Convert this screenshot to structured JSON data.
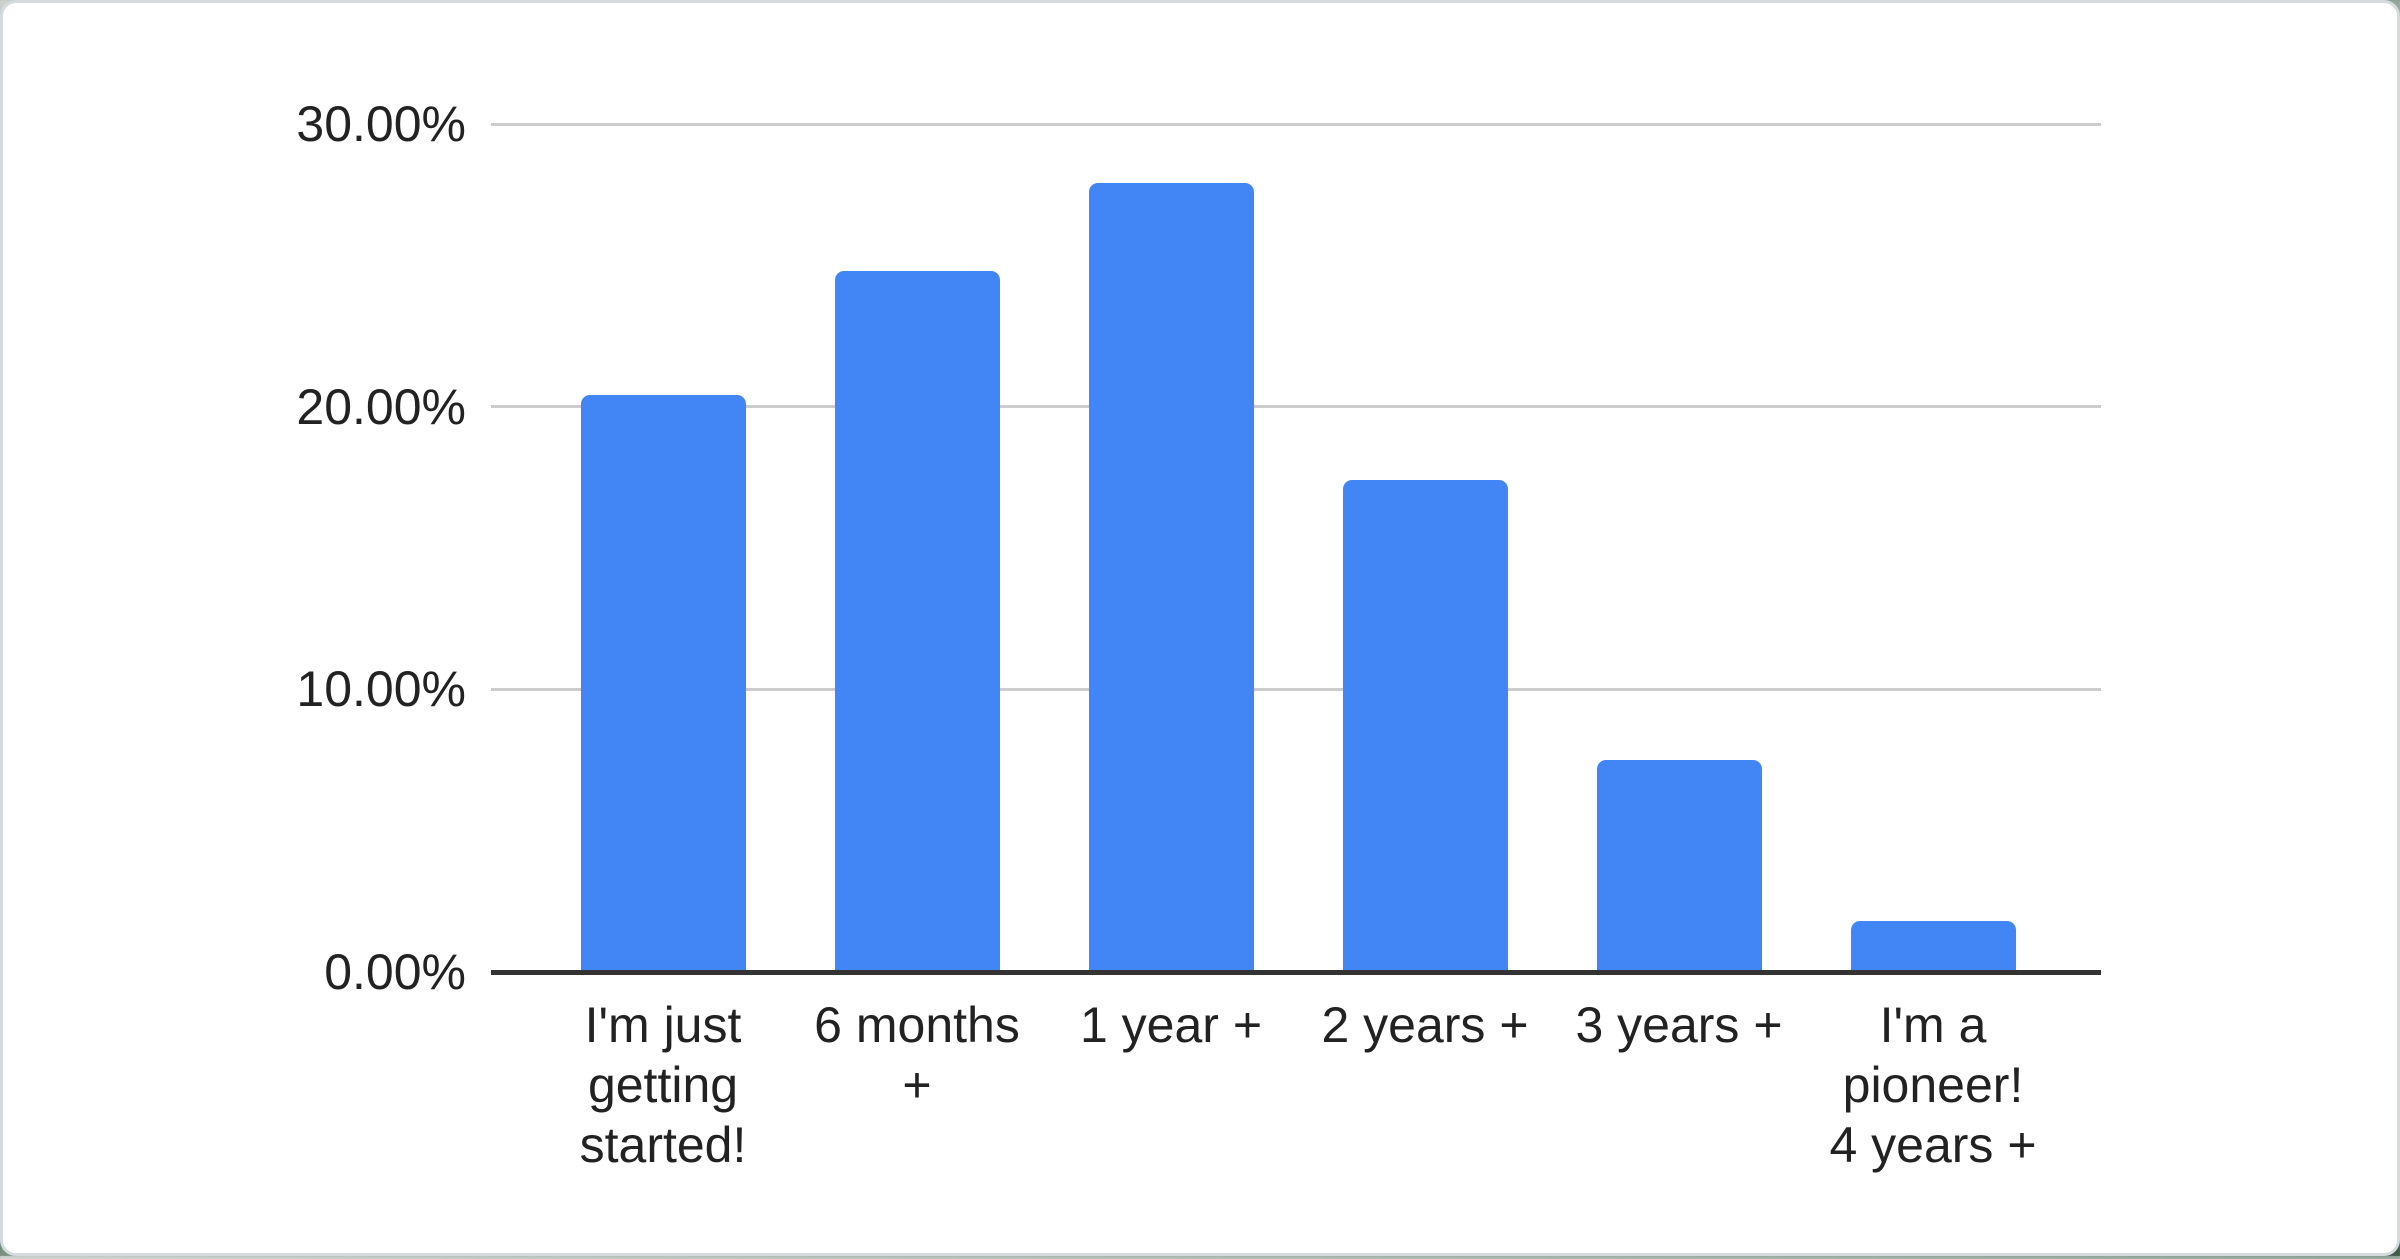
{
  "page": {
    "background_top_color": "#ccd3cf",
    "background_bottom_color": "#3e5d49",
    "card_background": "#ffffff",
    "card_border_color": "#d5dade"
  },
  "chart_data": {
    "type": "bar",
    "title": "",
    "xlabel": "",
    "ylabel": "",
    "categories": [
      "I'm just getting started!",
      "6 months +",
      "1 year +",
      "2 years +",
      "3 years +",
      "I'm a pioneer! 4 years +"
    ],
    "category_lines": [
      [
        "I'm just",
        "getting",
        "started!"
      ],
      [
        "6 months",
        "+"
      ],
      [
        "1 year +"
      ],
      [
        "2 years +"
      ],
      [
        "3 years +"
      ],
      [
        "I'm a",
        "pioneer!",
        "4 years +"
      ]
    ],
    "values": [
      20.4,
      24.8,
      27.9,
      17.4,
      7.5,
      1.8
    ],
    "value_unit": "percent",
    "ylim": [
      0,
      30
    ],
    "y_ticks": [
      {
        "value": 0,
        "label": "0.00%"
      },
      {
        "value": 10,
        "label": "10.00%"
      },
      {
        "value": 20,
        "label": "20.00%"
      },
      {
        "value": 30,
        "label": "30.00%"
      }
    ],
    "grid": true,
    "legend": "none",
    "colors": {
      "bar": "#4285f4",
      "gridline": "#cccccc",
      "axis_line": "#333333",
      "tick_text": "#222222"
    }
  }
}
